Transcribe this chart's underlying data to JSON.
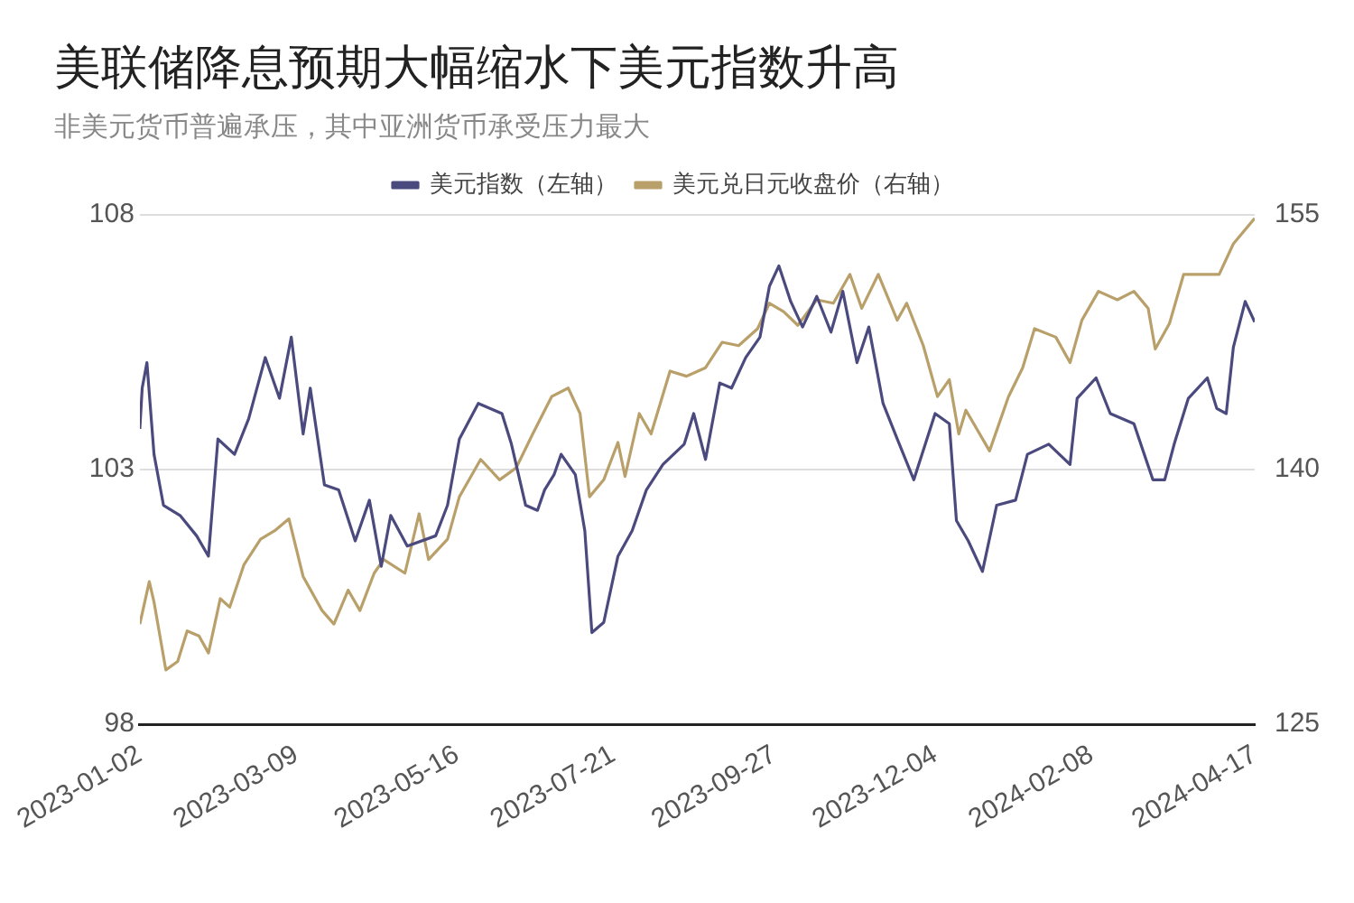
{
  "chart_data": {
    "type": "line",
    "title": "美联储降息预期大幅缩水下美元指数升高",
    "subtitle": "非美元货币普遍承压，其中亚洲货币承受压力最大",
    "legend": "top",
    "grid": "y",
    "xlim": [
      "2023-01-02",
      "2024-04-17"
    ],
    "xticks": [
      "2023-01-02",
      "2023-03-09",
      "2023-05-16",
      "2023-07-21",
      "2023-09-27",
      "2023-12-04",
      "2024-02-08",
      "2024-04-17"
    ],
    "ylim": [
      98,
      108
    ],
    "yticks": [
      98,
      103,
      108
    ],
    "y2lim": [
      125,
      155
    ],
    "y2ticks": [
      125,
      140,
      155
    ],
    "series": [
      {
        "name": "美元指数（左轴）",
        "color": "#4b4a7e",
        "x": [
          "2023-01-02",
          "2023-01-03",
          "2023-01-05",
          "2023-01-08",
          "2023-01-12",
          "2023-01-19",
          "2023-01-26",
          "2023-01-31",
          "2023-02-04",
          "2023-02-11",
          "2023-02-17",
          "2023-02-24",
          "2023-03-02",
          "2023-03-07",
          "2023-03-12",
          "2023-03-15",
          "2023-03-21",
          "2023-03-27",
          "2023-04-03",
          "2023-04-09",
          "2023-04-14",
          "2023-04-18",
          "2023-04-25",
          "2023-05-07",
          "2023-05-12",
          "2023-05-17",
          "2023-05-25",
          "2023-06-04",
          "2023-06-08",
          "2023-06-14",
          "2023-06-19",
          "2023-06-22",
          "2023-06-26",
          "2023-06-29",
          "2023-07-05",
          "2023-07-09",
          "2023-07-12",
          "2023-07-17",
          "2023-07-23",
          "2023-07-29",
          "2023-08-04",
          "2023-08-11",
          "2023-08-20",
          "2023-08-24",
          "2023-08-29",
          "2023-09-04",
          "2023-09-09",
          "2023-09-15",
          "2023-09-21",
          "2023-09-25",
          "2023-09-29",
          "2023-10-04",
          "2023-10-09",
          "2023-10-15",
          "2023-10-21",
          "2023-10-26",
          "2023-11-01",
          "2023-11-06",
          "2023-11-12",
          "2023-11-18",
          "2023-11-25",
          "2023-12-04",
          "2023-12-10",
          "2023-12-13",
          "2023-12-18",
          "2023-12-24",
          "2023-12-30",
          "2024-01-07",
          "2024-01-12",
          "2024-01-21",
          "2024-01-30",
          "2024-02-02",
          "2024-02-10",
          "2024-02-16",
          "2024-02-26",
          "2024-03-05",
          "2024-03-10",
          "2024-03-14",
          "2024-03-20",
          "2024-03-28",
          "2024-04-01",
          "2024-04-05",
          "2024-04-08",
          "2024-04-13",
          "2024-04-17"
        ],
        "values": [
          103.8,
          104.6,
          105.1,
          103.3,
          102.3,
          102.1,
          101.7,
          101.3,
          103.6,
          103.3,
          104.0,
          105.2,
          104.4,
          105.6,
          103.7,
          104.6,
          102.7,
          102.6,
          101.6,
          102.4,
          101.1,
          102.1,
          101.5,
          101.7,
          102.3,
          103.6,
          104.3,
          104.1,
          103.5,
          102.3,
          102.2,
          102.6,
          102.9,
          103.3,
          102.9,
          101.8,
          99.8,
          100.0,
          101.3,
          101.8,
          102.6,
          103.1,
          103.5,
          104.1,
          103.2,
          104.7,
          104.6,
          105.2,
          105.6,
          106.6,
          107.0,
          106.3,
          105.8,
          106.4,
          105.7,
          106.5,
          105.1,
          105.8,
          104.3,
          103.6,
          102.8,
          104.1,
          103.9,
          102.0,
          101.6,
          101.0,
          102.3,
          102.4,
          103.3,
          103.5,
          103.1,
          104.4,
          104.8,
          104.1,
          103.9,
          102.8,
          102.8,
          103.5,
          104.4,
          104.8,
          104.2,
          104.1,
          105.4,
          106.3,
          105.9
        ]
      },
      {
        "name": "美元兑日元收盘价（右轴）",
        "color": "#b9a06a",
        "axis": "y2",
        "x": [
          "2023-01-02",
          "2023-01-06",
          "2023-01-08",
          "2023-01-13",
          "2023-01-18",
          "2023-01-22",
          "2023-01-27",
          "2023-01-31",
          "2023-02-05",
          "2023-02-09",
          "2023-02-15",
          "2023-02-22",
          "2023-02-28",
          "2023-03-06",
          "2023-03-12",
          "2023-03-20",
          "2023-03-25",
          "2023-03-31",
          "2023-04-05",
          "2023-04-11",
          "2023-04-15",
          "2023-04-24",
          "2023-04-30",
          "2023-05-04",
          "2023-05-12",
          "2023-05-17",
          "2023-05-26",
          "2023-06-03",
          "2023-06-10",
          "2023-06-17",
          "2023-06-25",
          "2023-07-02",
          "2023-07-07",
          "2023-07-11",
          "2023-07-17",
          "2023-07-23",
          "2023-07-26",
          "2023-08-01",
          "2023-08-06",
          "2023-08-14",
          "2023-08-21",
          "2023-08-29",
          "2023-09-05",
          "2023-09-12",
          "2023-09-20",
          "2023-09-25",
          "2023-10-01",
          "2023-10-07",
          "2023-10-15",
          "2023-10-22",
          "2023-10-29",
          "2023-11-03",
          "2023-11-10",
          "2023-11-18",
          "2023-11-22",
          "2023-11-29",
          "2023-12-05",
          "2023-12-10",
          "2023-12-14",
          "2023-12-17",
          "2023-12-27",
          "2024-01-04",
          "2024-01-10",
          "2024-01-15",
          "2024-01-24",
          "2024-01-30",
          "2024-02-04",
          "2024-02-11",
          "2024-02-19",
          "2024-02-26",
          "2024-03-03",
          "2024-03-06",
          "2024-03-12",
          "2024-03-18",
          "2024-03-28",
          "2024-04-02",
          "2024-04-08",
          "2024-04-17"
        ],
        "values": [
          130.9,
          133.4,
          132.2,
          128.2,
          128.7,
          130.5,
          130.2,
          129.2,
          132.4,
          131.9,
          134.4,
          135.9,
          136.4,
          137.1,
          133.7,
          131.7,
          130.9,
          132.9,
          131.7,
          133.9,
          134.7,
          133.9,
          137.4,
          134.7,
          135.9,
          138.4,
          140.6,
          139.4,
          140.1,
          142.1,
          144.3,
          144.8,
          143.3,
          138.4,
          139.4,
          141.6,
          139.6,
          143.3,
          142.1,
          145.8,
          145.5,
          146.0,
          147.5,
          147.3,
          148.3,
          149.8,
          149.3,
          148.5,
          150.0,
          149.8,
          151.5,
          149.5,
          151.5,
          148.8,
          149.8,
          147.3,
          144.3,
          145.3,
          142.1,
          143.5,
          141.1,
          144.3,
          146.0,
          148.3,
          147.8,
          146.3,
          148.8,
          150.5,
          150.0,
          150.5,
          149.5,
          147.1,
          148.6,
          151.5,
          151.5,
          151.5,
          153.3,
          154.8
        ]
      }
    ]
  }
}
